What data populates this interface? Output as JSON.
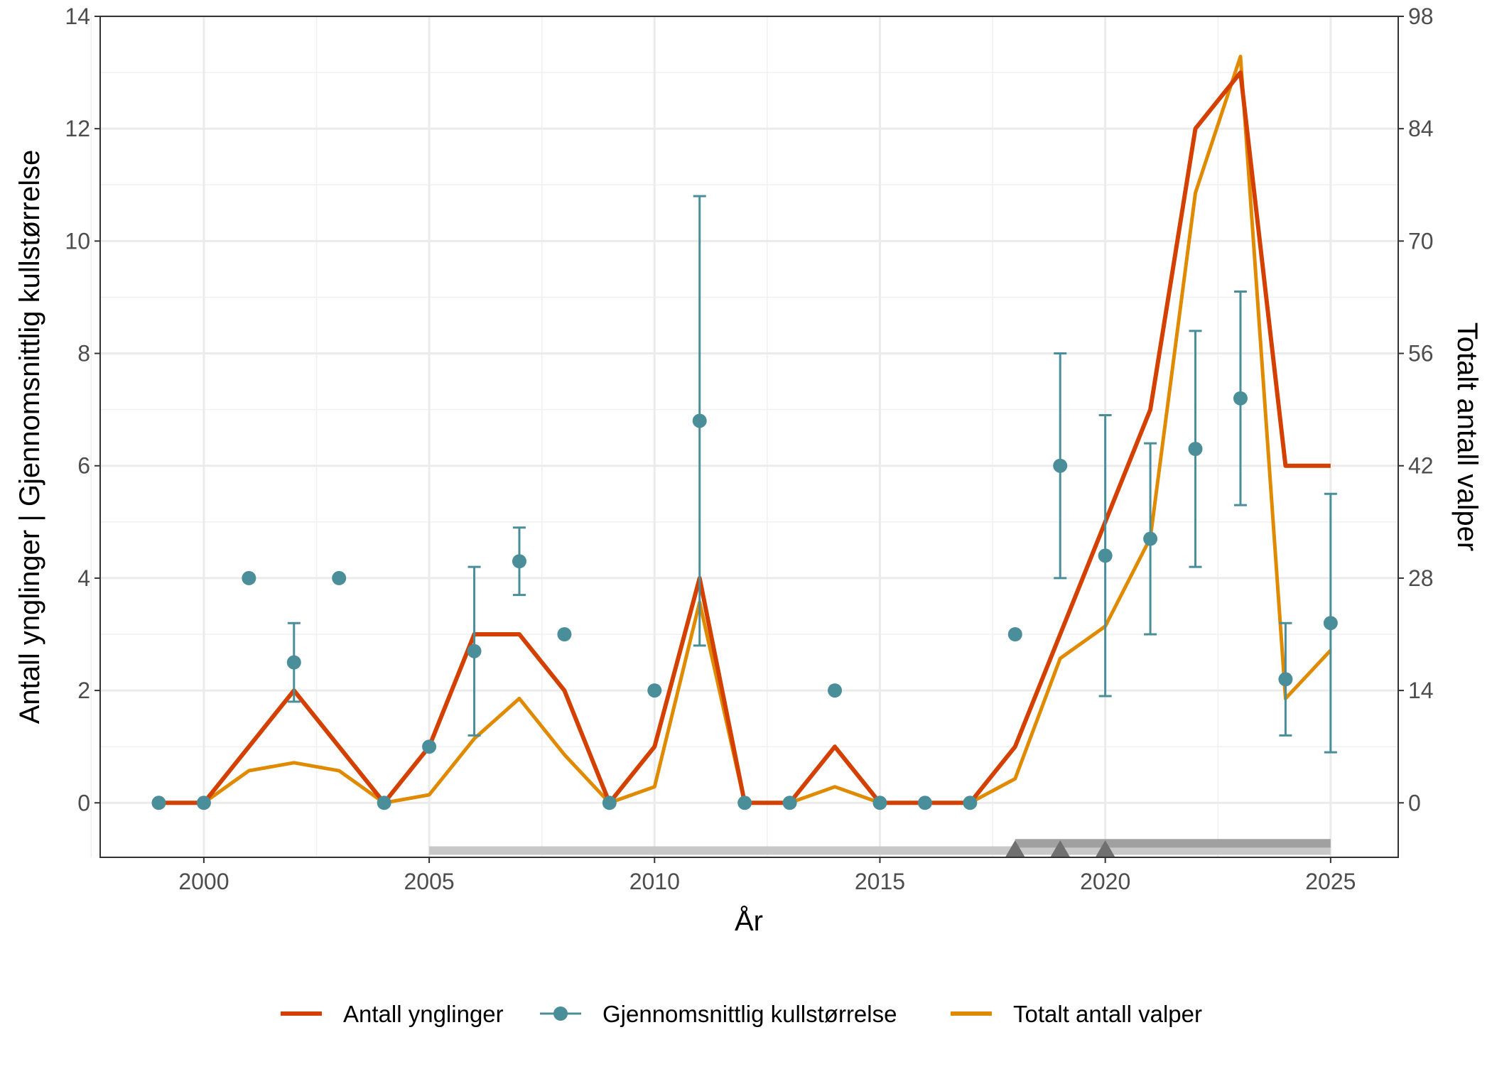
{
  "chart_data": {
    "type": "line",
    "xlabel": "År",
    "ylabel": "Antall ynglinger | Gjennomsnittlig kullstørrelse",
    "ylabel_right": "Totalt antall valper",
    "xlim": [
      1997.7,
      2026.5
    ],
    "ylim": [
      -0.97,
      14
    ],
    "ylim_right": [
      -6.8,
      98
    ],
    "x_ticks": [
      2000,
      2005,
      2010,
      2015,
      2020,
      2025
    ],
    "y_ticks": [
      0,
      2,
      4,
      6,
      8,
      10,
      12,
      14
    ],
    "y_ticks_right": [
      0,
      14,
      28,
      42,
      56,
      70,
      84,
      98
    ],
    "right_axis_factor": 7,
    "grid": true,
    "legend_position": "bottom",
    "x": [
      1999,
      2000,
      2001,
      2002,
      2003,
      2004,
      2005,
      2006,
      2007,
      2008,
      2009,
      2010,
      2011,
      2012,
      2013,
      2014,
      2015,
      2016,
      2017,
      2018,
      2019,
      2020,
      2021,
      2022,
      2023,
      2024,
      2025
    ],
    "series": [
      {
        "name": "Antall ynglinger",
        "color": "#D44000",
        "axis": "left",
        "values": [
          0,
          0,
          1,
          2,
          1,
          0,
          1,
          3,
          3,
          2,
          0,
          1,
          4,
          0,
          0,
          1,
          0,
          0,
          0,
          1,
          3,
          5,
          7,
          12,
          13,
          6,
          6
        ]
      },
      {
        "name": "Gjennomsnittlig kullstørrelse",
        "color": "#4A8E9A",
        "axis": "left",
        "values": [
          0,
          0,
          4,
          2.5,
          4,
          0,
          1,
          2.7,
          4.3,
          3,
          0,
          2,
          6.8,
          0,
          0,
          2,
          0,
          0,
          0,
          3,
          6,
          4.4,
          4.7,
          6.3,
          7.2,
          2.2,
          3.2
        ],
        "error_low": [
          null,
          null,
          null,
          1.8,
          null,
          null,
          null,
          1.2,
          3.7,
          null,
          null,
          null,
          2.8,
          null,
          null,
          null,
          null,
          null,
          null,
          null,
          4,
          1.9,
          3,
          4.2,
          5.3,
          1.2,
          0.9
        ],
        "error_high": [
          null,
          null,
          null,
          3.2,
          null,
          null,
          null,
          4.2,
          4.9,
          null,
          null,
          null,
          10.8,
          null,
          null,
          null,
          null,
          null,
          null,
          null,
          8,
          6.9,
          6.4,
          8.4,
          9.1,
          3.2,
          5.5
        ]
      },
      {
        "name": "Totalt antall valper",
        "color": "#E08A00",
        "axis": "right",
        "values": [
          0,
          0,
          4,
          5,
          4,
          0,
          1,
          8,
          13,
          6,
          0,
          2,
          25,
          0,
          0,
          2,
          0,
          0,
          0,
          3,
          18,
          22,
          33,
          76,
          93,
          13,
          19
        ]
      }
    ],
    "period_bars": [
      {
        "from": 2005,
        "to": 2025,
        "color": "#C8C8C8",
        "level": -0.85
      },
      {
        "from": 2018,
        "to": 2025,
        "color": "#A0A0A0",
        "level": -0.72
      }
    ],
    "triangle_markers": [
      2018,
      2019,
      2020
    ]
  }
}
